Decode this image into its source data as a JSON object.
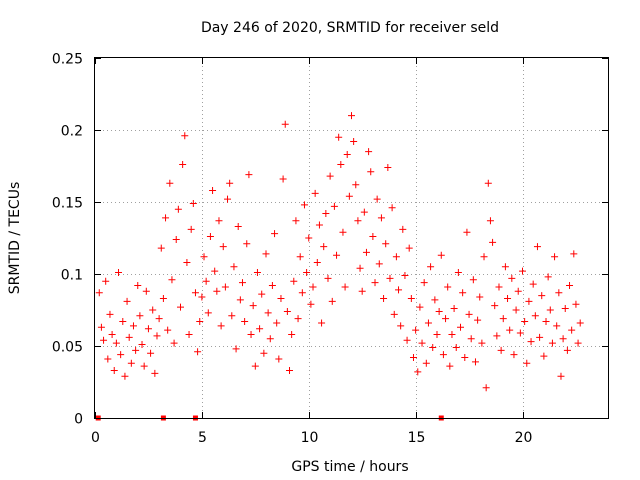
{
  "chart_data": {
    "type": "scatter",
    "title": "Day 246 of 2020, SRMTID for receiver seld",
    "xlabel": "GPS time / hours",
    "ylabel": "SRMTID / TECUs",
    "xlim": [
      0,
      24
    ],
    "ylim": [
      0,
      0.25
    ],
    "x_ticks": [
      0,
      5,
      10,
      15,
      20
    ],
    "y_ticks": [
      0,
      0.05,
      0.1,
      0.15,
      0.2,
      0.25
    ],
    "x_tick_labels": [
      "0",
      "5",
      "10",
      "15",
      "20"
    ],
    "y_tick_labels": [
      "0",
      "0.05",
      "0.1",
      "0.15",
      "0.2",
      "0.25"
    ],
    "grid": true,
    "marker": "+",
    "color": "#ff0000",
    "series": [
      {
        "name": "SRMTID",
        "points": [
          [
            0.2,
            0.087
          ],
          [
            0.3,
            0.063
          ],
          [
            0.4,
            0.054
          ],
          [
            0.5,
            0.095
          ],
          [
            0.6,
            0.041
          ],
          [
            0.7,
            0.072
          ],
          [
            0.8,
            0.058
          ],
          [
            0.9,
            0.033
          ],
          [
            1.0,
            0.052
          ],
          [
            1.1,
            0.101
          ],
          [
            1.2,
            0.044
          ],
          [
            1.3,
            0.067
          ],
          [
            1.4,
            0.029
          ],
          [
            1.5,
            0.081
          ],
          [
            1.6,
            0.056
          ],
          [
            1.7,
            0.038
          ],
          [
            1.8,
            0.064
          ],
          [
            1.9,
            0.047
          ],
          [
            2.0,
            0.092
          ],
          [
            2.1,
            0.071
          ],
          [
            2.2,
            0.051
          ],
          [
            2.3,
            0.036
          ],
          [
            2.4,
            0.088
          ],
          [
            2.5,
            0.062
          ],
          [
            2.6,
            0.045
          ],
          [
            2.7,
            0.075
          ],
          [
            2.8,
            0.031
          ],
          [
            2.9,
            0.057
          ],
          [
            3.0,
            0.069
          ],
          [
            3.1,
            0.118
          ],
          [
            3.2,
            0.083
          ],
          [
            3.3,
            0.139
          ],
          [
            3.4,
            0.061
          ],
          [
            3.5,
            0.163
          ],
          [
            3.6,
            0.096
          ],
          [
            3.7,
            0.052
          ],
          [
            3.8,
            0.124
          ],
          [
            3.9,
            0.145
          ],
          [
            4.0,
            0.077
          ],
          [
            4.1,
            0.176
          ],
          [
            4.2,
            0.196
          ],
          [
            4.3,
            0.108
          ],
          [
            4.4,
            0.058
          ],
          [
            4.5,
            0.131
          ],
          [
            4.6,
            0.149
          ],
          [
            4.7,
            0.087
          ],
          [
            4.8,
            0.046
          ],
          [
            4.9,
            0.067
          ],
          [
            5.0,
            0.084
          ],
          [
            5.1,
            0.112
          ],
          [
            5.2,
            0.095
          ],
          [
            5.3,
            0.073
          ],
          [
            5.4,
            0.126
          ],
          [
            5.5,
            0.158
          ],
          [
            5.6,
            0.102
          ],
          [
            5.7,
            0.088
          ],
          [
            5.8,
            0.137
          ],
          [
            5.9,
            0.064
          ],
          [
            6.0,
            0.119
          ],
          [
            6.1,
            0.091
          ],
          [
            6.2,
            0.152
          ],
          [
            6.3,
            0.163
          ],
          [
            6.4,
            0.071
          ],
          [
            6.5,
            0.105
          ],
          [
            6.6,
            0.048
          ],
          [
            6.7,
            0.133
          ],
          [
            6.8,
            0.082
          ],
          [
            6.9,
            0.094
          ],
          [
            7.0,
            0.067
          ],
          [
            7.1,
            0.121
          ],
          [
            7.2,
            0.169
          ],
          [
            7.3,
            0.058
          ],
          [
            7.4,
            0.078
          ],
          [
            7.5,
            0.036
          ],
          [
            7.6,
            0.101
          ],
          [
            7.7,
            0.062
          ],
          [
            7.8,
            0.086
          ],
          [
            7.9,
            0.045
          ],
          [
            8.0,
            0.114
          ],
          [
            8.1,
            0.073
          ],
          [
            8.2,
            0.055
          ],
          [
            8.3,
            0.092
          ],
          [
            8.4,
            0.128
          ],
          [
            8.5,
            0.066
          ],
          [
            8.6,
            0.041
          ],
          [
            8.7,
            0.083
          ],
          [
            8.8,
            0.166
          ],
          [
            8.9,
            0.204
          ],
          [
            9.0,
            0.074
          ],
          [
            9.1,
            0.033
          ],
          [
            9.2,
            0.058
          ],
          [
            9.3,
            0.095
          ],
          [
            9.4,
            0.137
          ],
          [
            9.5,
            0.069
          ],
          [
            9.6,
            0.112
          ],
          [
            9.7,
            0.087
          ],
          [
            9.8,
            0.148
          ],
          [
            9.9,
            0.101
          ],
          [
            10.0,
            0.125
          ],
          [
            10.1,
            0.079
          ],
          [
            10.2,
            0.091
          ],
          [
            10.3,
            0.156
          ],
          [
            10.4,
            0.108
          ],
          [
            10.5,
            0.134
          ],
          [
            10.6,
            0.066
          ],
          [
            10.7,
            0.119
          ],
          [
            10.8,
            0.142
          ],
          [
            10.9,
            0.097
          ],
          [
            11.0,
            0.168
          ],
          [
            11.1,
            0.081
          ],
          [
            11.2,
            0.147
          ],
          [
            11.3,
            0.113
          ],
          [
            11.4,
            0.195
          ],
          [
            11.5,
            0.176
          ],
          [
            11.6,
            0.129
          ],
          [
            11.7,
            0.091
          ],
          [
            11.8,
            0.183
          ],
          [
            11.9,
            0.154
          ],
          [
            12.0,
            0.21
          ],
          [
            12.1,
            0.192
          ],
          [
            12.2,
            0.162
          ],
          [
            12.3,
            0.137
          ],
          [
            12.4,
            0.104
          ],
          [
            12.5,
            0.088
          ],
          [
            12.6,
            0.143
          ],
          [
            12.7,
            0.115
          ],
          [
            12.8,
            0.185
          ],
          [
            12.9,
            0.171
          ],
          [
            13.0,
            0.126
          ],
          [
            13.1,
            0.094
          ],
          [
            13.2,
            0.152
          ],
          [
            13.3,
            0.107
          ],
          [
            13.4,
            0.139
          ],
          [
            13.5,
            0.083
          ],
          [
            13.6,
            0.121
          ],
          [
            13.7,
            0.174
          ],
          [
            13.8,
            0.097
          ],
          [
            13.9,
            0.146
          ],
          [
            14.0,
            0.072
          ],
          [
            14.1,
            0.112
          ],
          [
            14.2,
            0.089
          ],
          [
            14.3,
            0.064
          ],
          [
            14.4,
            0.131
          ],
          [
            14.5,
            0.099
          ],
          [
            14.6,
            0.054
          ],
          [
            14.7,
            0.118
          ],
          [
            14.8,
            0.083
          ],
          [
            14.9,
            0.042
          ],
          [
            15.0,
            0.061
          ],
          [
            15.1,
            0.032
          ],
          [
            15.2,
            0.077
          ],
          [
            15.3,
            0.052
          ],
          [
            15.4,
            0.094
          ],
          [
            15.5,
            0.038
          ],
          [
            15.6,
            0.066
          ],
          [
            15.7,
            0.105
          ],
          [
            15.8,
            0.049
          ],
          [
            15.9,
            0.082
          ],
          [
            16.0,
            0.058
          ],
          [
            16.1,
            0.074
          ],
          [
            16.2,
            0.113
          ],
          [
            16.3,
            0.044
          ],
          [
            16.4,
            0.069
          ],
          [
            16.5,
            0.091
          ],
          [
            16.6,
            0.036
          ],
          [
            16.7,
            0.058
          ],
          [
            16.8,
            0.076
          ],
          [
            16.9,
            0.049
          ],
          [
            17.0,
            0.101
          ],
          [
            17.1,
            0.063
          ],
          [
            17.2,
            0.087
          ],
          [
            17.3,
            0.042
          ],
          [
            17.4,
            0.129
          ],
          [
            17.5,
            0.072
          ],
          [
            17.6,
            0.055
          ],
          [
            17.7,
            0.096
          ],
          [
            17.8,
            0.039
          ],
          [
            17.9,
            0.068
          ],
          [
            18.0,
            0.084
          ],
          [
            18.1,
            0.052
          ],
          [
            18.2,
            0.112
          ],
          [
            18.3,
            0.021
          ],
          [
            18.4,
            0.163
          ],
          [
            18.5,
            0.137
          ],
          [
            18.6,
            0.122
          ],
          [
            18.7,
            0.078
          ],
          [
            18.8,
            0.057
          ],
          [
            18.9,
            0.091
          ],
          [
            19.0,
            0.047
          ],
          [
            19.1,
            0.069
          ],
          [
            19.2,
            0.105
          ],
          [
            19.3,
            0.083
          ],
          [
            19.4,
            0.061
          ],
          [
            19.5,
            0.097
          ],
          [
            19.6,
            0.044
          ],
          [
            19.7,
            0.075
          ],
          [
            19.8,
            0.088
          ],
          [
            19.9,
            0.059
          ],
          [
            20.0,
            0.102
          ],
          [
            20.1,
            0.067
          ],
          [
            20.2,
            0.038
          ],
          [
            20.3,
            0.081
          ],
          [
            20.4,
            0.053
          ],
          [
            20.5,
            0.093
          ],
          [
            20.6,
            0.071
          ],
          [
            20.7,
            0.119
          ],
          [
            20.8,
            0.056
          ],
          [
            20.9,
            0.085
          ],
          [
            21.0,
            0.043
          ],
          [
            21.1,
            0.067
          ],
          [
            21.2,
            0.098
          ],
          [
            21.3,
            0.075
          ],
          [
            21.4,
            0.052
          ],
          [
            21.5,
            0.112
          ],
          [
            21.6,
            0.064
          ],
          [
            21.7,
            0.087
          ],
          [
            21.8,
            0.029
          ],
          [
            21.9,
            0.055
          ],
          [
            22.0,
            0.076
          ],
          [
            22.1,
            0.047
          ],
          [
            22.2,
            0.092
          ],
          [
            22.3,
            0.061
          ],
          [
            22.4,
            0.114
          ],
          [
            22.5,
            0.079
          ],
          [
            22.6,
            0.052
          ],
          [
            22.7,
            0.066
          ]
        ]
      }
    ],
    "markers_at_zero": [
      0.15,
      3.2,
      4.7,
      16.2
    ]
  }
}
